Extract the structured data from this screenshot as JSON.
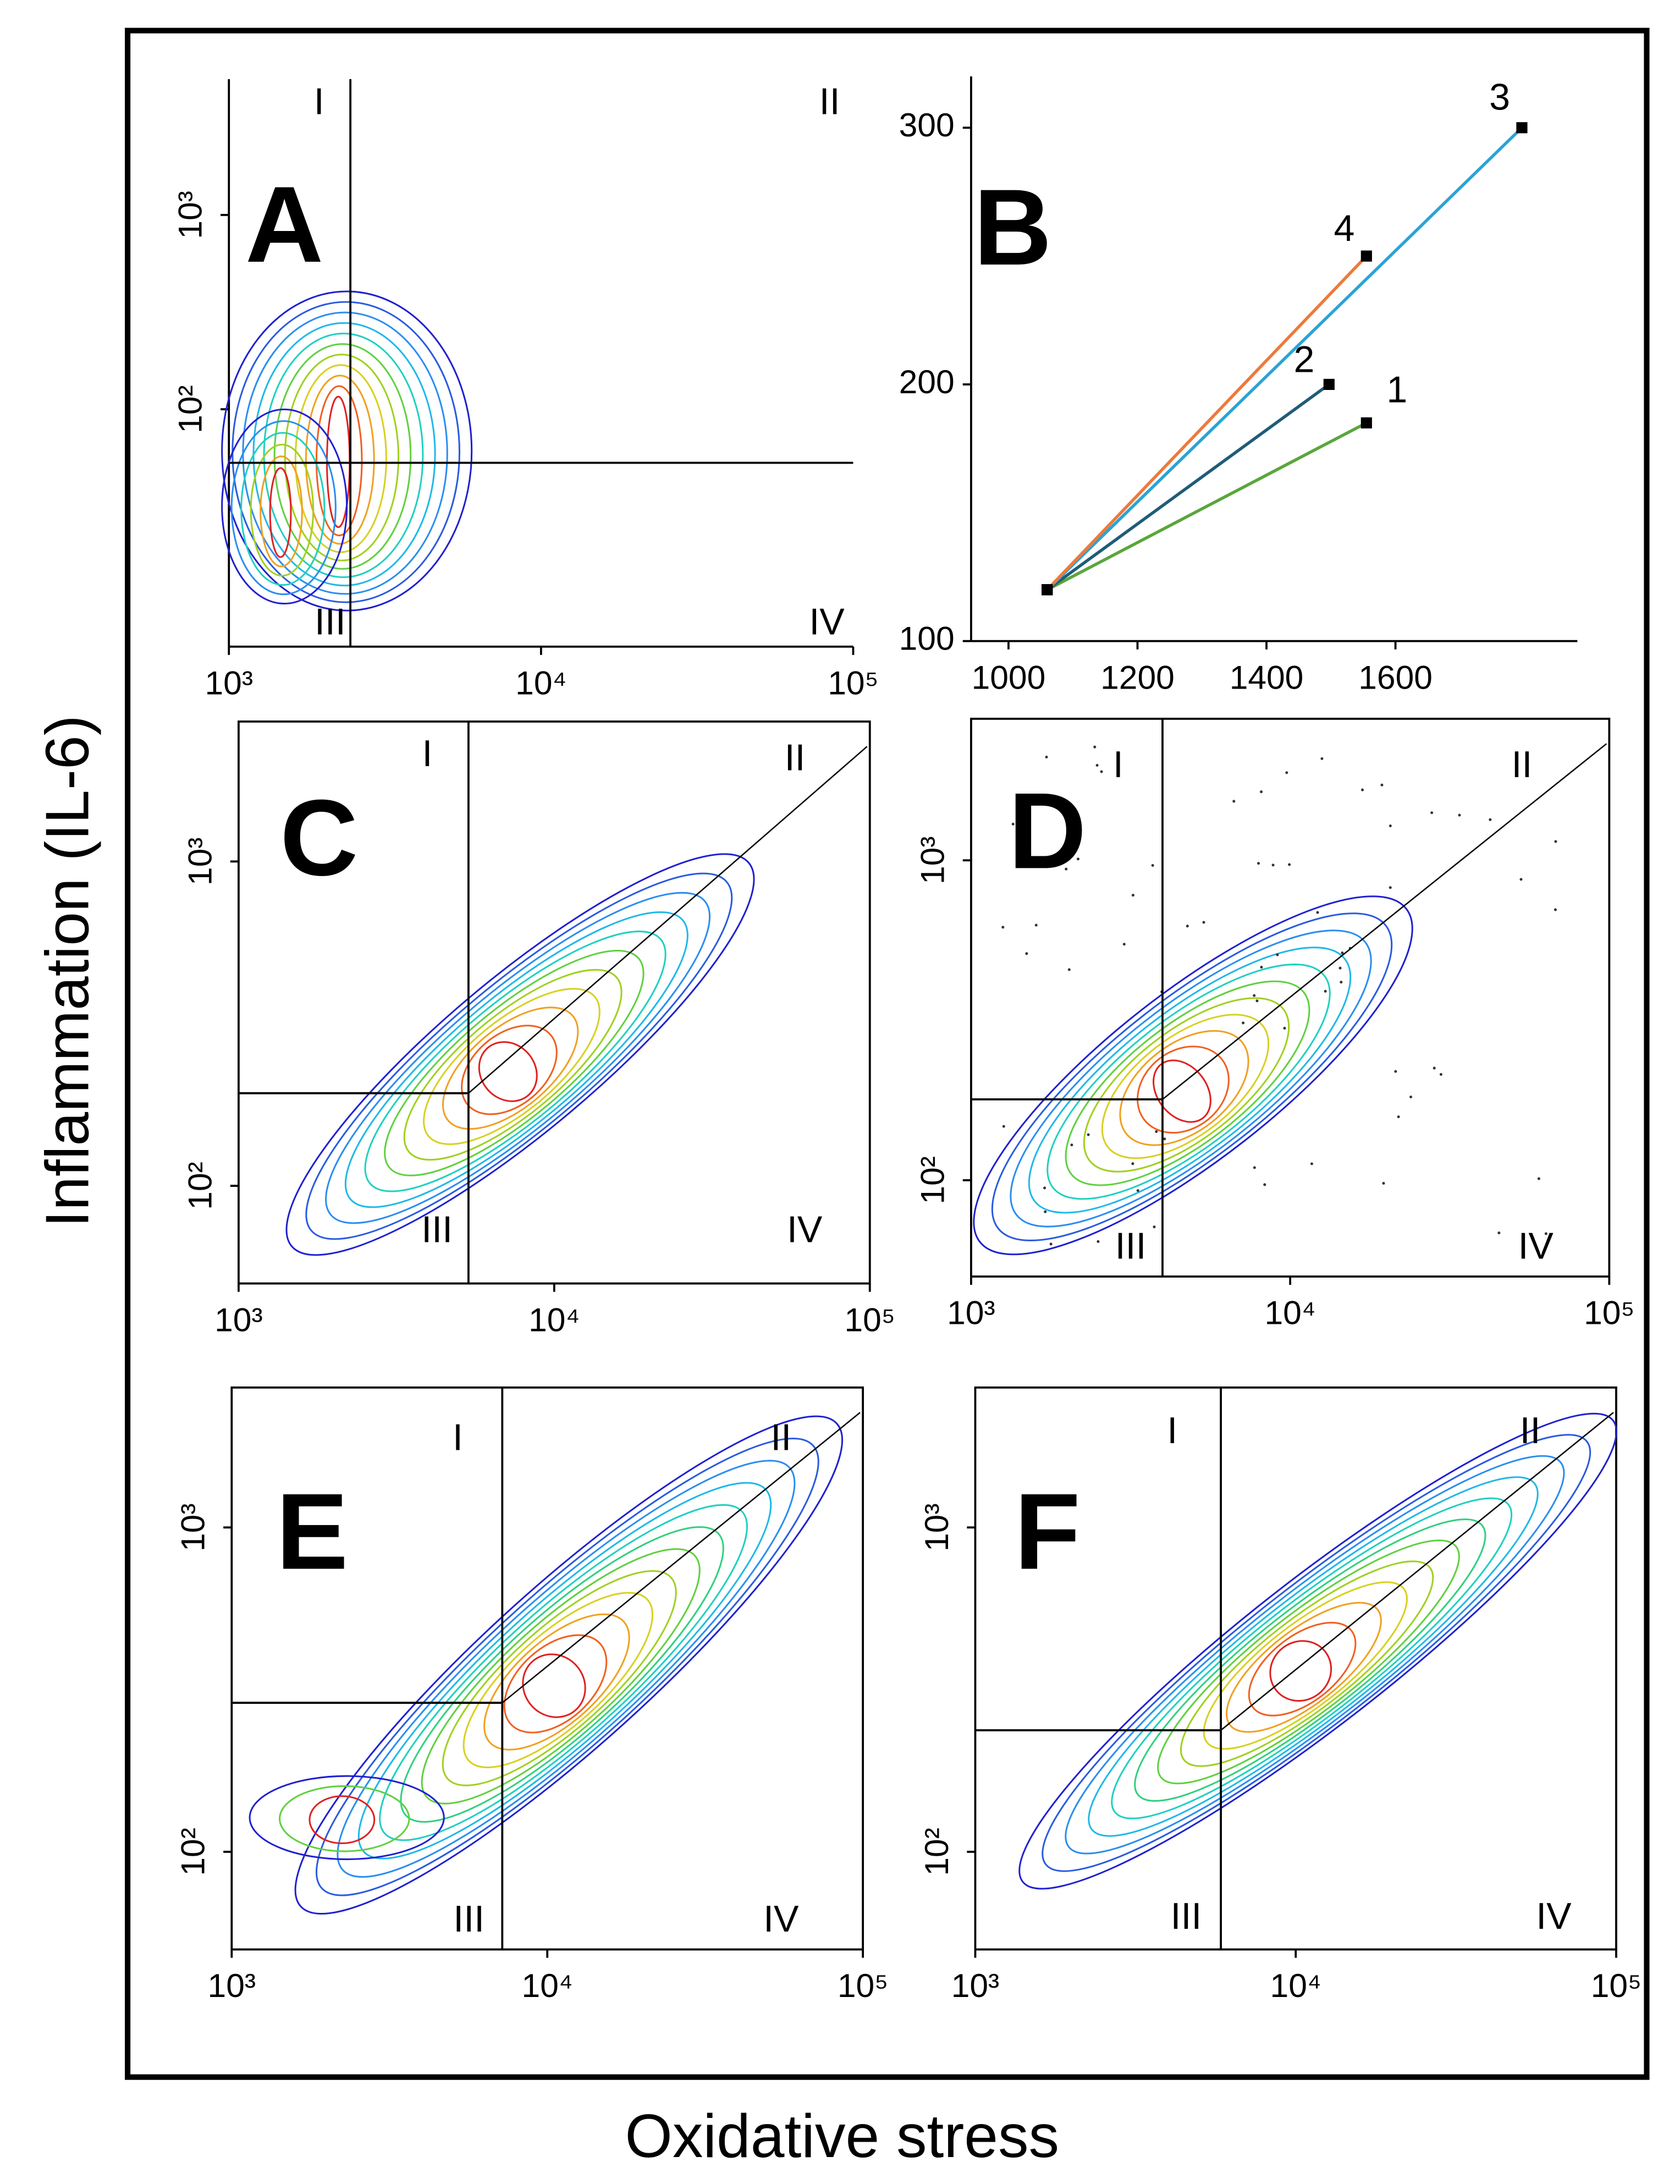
{
  "y_label": "Inflammation (IL-6)",
  "x_label": "Oxidative stress",
  "chart_data": [
    {
      "type": "contour",
      "panel": "A",
      "log_scale": true,
      "xlim": [
        1000,
        100000
      ],
      "ylim": [
        6,
        5000
      ],
      "xticks": [
        {
          "value": 1000,
          "label": "10³"
        },
        {
          "value": 10000,
          "label": "10⁴"
        },
        {
          "value": 100000,
          "label": "10⁵"
        }
      ],
      "yticks": [
        {
          "value": 100,
          "label": "10²"
        },
        {
          "value": 1000,
          "label": "10³"
        }
      ],
      "quadrants": [
        "I",
        "II",
        "III",
        "IV"
      ],
      "gate": {
        "x": 2450,
        "y": 53
      }
    },
    {
      "type": "line",
      "panel": "B",
      "xlim": [
        942,
        1882
      ],
      "ylim": [
        100,
        320
      ],
      "xticks": [
        1000,
        1200,
        1400,
        1600
      ],
      "yticks": [
        100,
        200,
        300
      ],
      "series": [
        {
          "name": "1",
          "color": "#5aa63c",
          "x": [
            1060,
            1555
          ],
          "values": [
            120,
            185
          ]
        },
        {
          "name": "2",
          "color": "#1f5c78",
          "x": [
            1060,
            1497
          ],
          "values": [
            120,
            200
          ]
        },
        {
          "name": "3",
          "color": "#2ba3d6",
          "x": [
            1060,
            1796
          ],
          "values": [
            120,
            300
          ]
        },
        {
          "name": "4",
          "color": "#ec7a3c",
          "x": [
            1060,
            1555
          ],
          "values": [
            120,
            250
          ]
        }
      ]
    },
    {
      "type": "contour",
      "panel": "C",
      "log_scale": true,
      "xlim": [
        1000,
        100000
      ],
      "ylim": [
        50,
        2700
      ],
      "xticks": [
        {
          "value": 1000,
          "label": "10³"
        },
        {
          "value": 10000,
          "label": "10⁴"
        },
        {
          "value": 100000,
          "label": "10⁵"
        }
      ],
      "yticks": [
        {
          "value": 100,
          "label": "10²"
        },
        {
          "value": 1000,
          "label": "10³"
        }
      ],
      "quadrants": [
        "I",
        "II",
        "III",
        "IV"
      ],
      "gate": {
        "x": 5350,
        "y": 193
      }
    },
    {
      "type": "contour",
      "panel": "D",
      "log_scale": true,
      "xlim": [
        1000,
        100000
      ],
      "ylim": [
        50,
        2770
      ],
      "xticks": [
        {
          "value": 1000,
          "label": "10³"
        },
        {
          "value": 10000,
          "label": "10⁴"
        },
        {
          "value": 100000,
          "label": "10⁵"
        }
      ],
      "yticks": [
        {
          "value": 100,
          "label": "10²"
        },
        {
          "value": 1000,
          "label": "10³"
        }
      ],
      "quadrants": [
        "I",
        "II",
        "III",
        "IV"
      ],
      "gate": {
        "x": 3980,
        "y": 179
      }
    },
    {
      "type": "contour",
      "panel": "E",
      "log_scale": true,
      "xlim": [
        1000,
        100000
      ],
      "ylim": [
        50,
        2700
      ],
      "xticks": [
        {
          "value": 1000,
          "label": "10³"
        },
        {
          "value": 10000,
          "label": "10⁴"
        },
        {
          "value": 100000,
          "label": "10⁵"
        }
      ],
      "yticks": [
        {
          "value": 100,
          "label": "10²"
        },
        {
          "value": 1000,
          "label": "10³"
        }
      ],
      "quadrants": [
        "I",
        "II",
        "III",
        "IV"
      ],
      "gate": {
        "x": 7200,
        "y": 288
      }
    },
    {
      "type": "contour",
      "panel": "F",
      "log_scale": true,
      "xlim": [
        1000,
        100000
      ],
      "ylim": [
        50,
        2700
      ],
      "xticks": [
        {
          "value": 1000,
          "label": "10³"
        },
        {
          "value": 10000,
          "label": "10⁴"
        },
        {
          "value": 100000,
          "label": "10⁵"
        }
      ],
      "yticks": [
        {
          "value": 100,
          "label": "10²"
        },
        {
          "value": 1000,
          "label": "10³"
        }
      ],
      "quadrants": [
        "I",
        "II",
        "III",
        "IV"
      ],
      "gate": {
        "x": 5840,
        "y": 237
      }
    }
  ]
}
